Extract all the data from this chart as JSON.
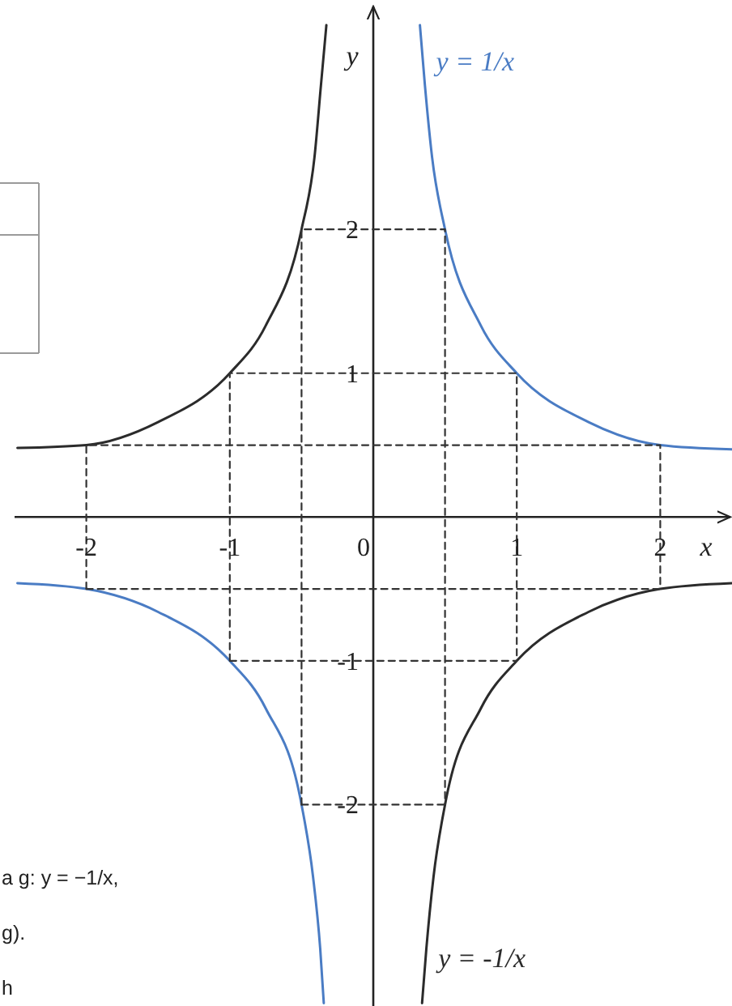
{
  "chart_data": {
    "type": "line",
    "xlabel": "x",
    "ylabel": "y",
    "xlim": [
      -2.5,
      2.5
    ],
    "ylim": [
      -3.4,
      3.55
    ],
    "xticks": [
      -2,
      -1,
      0,
      1,
      2
    ],
    "yticks": [
      -2,
      -1,
      1,
      2
    ],
    "series": [
      {
        "name": "y = 1/x",
        "color": "#4a7cc4",
        "x": [
          -2.48,
          -2,
          -1.5,
          -1,
          -0.75,
          -0.5,
          -0.42,
          -0.37,
          -0.345,
          0,
          0.325,
          0.36,
          0.41,
          0.5,
          0.75,
          1,
          1.5,
          2,
          2.5
        ],
        "values": [
          -0.46,
          -0.5,
          -0.66,
          -1,
          -1.33,
          -2,
          -2.5,
          -3,
          -3.38,
          null,
          3.42,
          3,
          2.5,
          2,
          1.33,
          1,
          0.66,
          0.5,
          0.47
        ]
      },
      {
        "name": "y = -1/x",
        "color": "#2b2b2b",
        "x": [
          -2.48,
          -2,
          -1.5,
          -1,
          -0.75,
          -0.5,
          -0.41,
          -0.365,
          -0.327,
          0,
          0.34,
          0.37,
          0.42,
          0.5,
          0.75,
          1,
          1.5,
          2,
          2.5
        ],
        "values": [
          0.48,
          0.5,
          0.66,
          1,
          1.33,
          2,
          2.5,
          3,
          3.42,
          null,
          -3.38,
          -3,
          -2.5,
          -2,
          -1.33,
          -1,
          -0.66,
          -0.5,
          -0.46
        ]
      },
      {
        "color": "#333333",
        "line_style": "dashed",
        "x": [
          -2,
          -2,
          2,
          2
        ],
        "values": [
          -0.5,
          0.5,
          0.5,
          -0.5
        ]
      },
      {
        "color": "#333333",
        "line_style": "dashed",
        "x": [
          -2,
          2
        ],
        "values": [
          -0.5,
          -0.5
        ]
      },
      {
        "color": "#333333",
        "line_style": "dashed",
        "x": [
          -1,
          -1,
          1,
          1
        ],
        "values": [
          -1,
          1,
          1,
          -1
        ]
      },
      {
        "color": "#333333",
        "line_style": "dashed",
        "x": [
          -1,
          1
        ],
        "values": [
          -1,
          -1
        ]
      },
      {
        "color": "#333333",
        "line_style": "dashed",
        "x": [
          -0.5,
          -0.5,
          0.5,
          0.5
        ],
        "values": [
          -2,
          2,
          2,
          -2
        ]
      },
      {
        "color": "#333333",
        "line_style": "dashed",
        "x": [
          -0.5,
          0.5
        ],
        "values": [
          -2,
          -2
        ]
      }
    ],
    "annotations": [
      "a g: y = −1/x,",
      "g).",
      "h"
    ]
  }
}
